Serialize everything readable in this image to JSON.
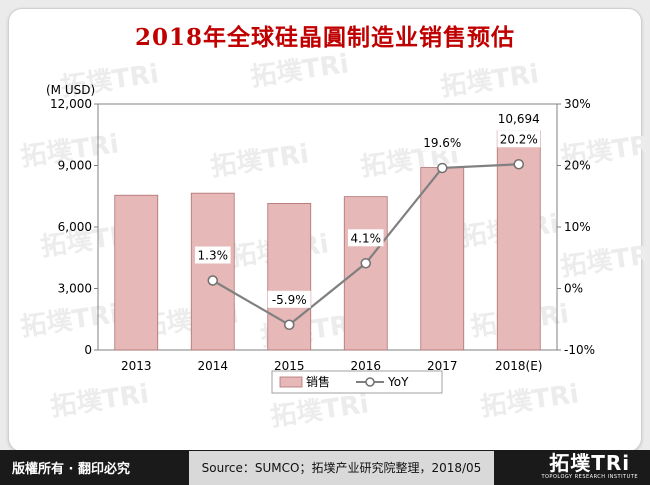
{
  "title": "2018年全球硅晶圓制造业销售预估",
  "watermark_text": "拓墣TRi",
  "chart_data": {
    "type": "bar",
    "categories": [
      "2013",
      "2014",
      "2015",
      "2016",
      "2017",
      "2018(E)"
    ],
    "series": [
      {
        "name": "销售",
        "type": "bar",
        "axis": "left",
        "values": [
          7550,
          7650,
          7150,
          7480,
          8900,
          10694
        ],
        "color": "#e6b8b7"
      },
      {
        "name": "YoY",
        "type": "line",
        "axis": "right",
        "values": [
          null,
          1.3,
          -5.9,
          4.1,
          19.6,
          20.2
        ],
        "color": "#808080"
      }
    ],
    "data_labels": {
      "bar": [
        "",
        "",
        "",
        "",
        "",
        "10,694"
      ],
      "line": [
        "",
        "1.3%",
        "-5.9%",
        "4.1%",
        "19.6%",
        "20.2%"
      ]
    },
    "ylabel": "(M USD)",
    "ylim": [
      0,
      12000
    ],
    "yticks": [
      0,
      3000,
      6000,
      9000,
      12000
    ],
    "ytick_labels": [
      "0",
      "3,000",
      "6,000",
      "9,000",
      "12,000"
    ],
    "y2lim": [
      -10,
      30
    ],
    "y2ticks": [
      -10,
      0,
      10,
      20,
      30
    ],
    "y2tick_labels": [
      "-10%",
      "0%",
      "10%",
      "20%",
      "30%"
    ],
    "grid": false,
    "legend_position": "bottom",
    "legend": {
      "bar": "销售",
      "line": "YoY"
    }
  },
  "footer": {
    "copyright": "版權所有 · 翻印必究",
    "source": "Source：SUMCO；拓墣产业研究院整理，2018/05",
    "logo": "拓墣TRi",
    "logo_sub": "TOPOLOGY RESEARCH INSTITUTE"
  }
}
